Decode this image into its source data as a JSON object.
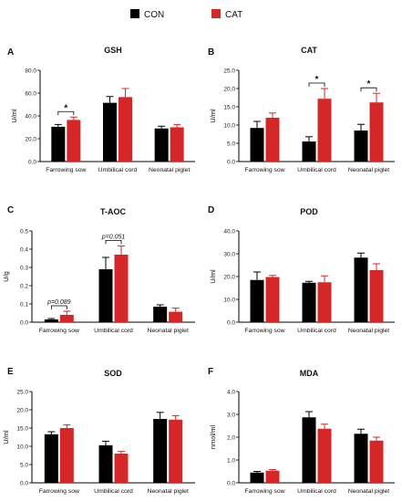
{
  "legend": [
    {
      "label": "CON",
      "color": "#000000"
    },
    {
      "label": "CAT",
      "color": "#d62728"
    }
  ],
  "chart_data": [
    {
      "type": "bar",
      "panel": "A",
      "title": "GSH",
      "ylabel": "U/ml",
      "categories": [
        "Farrowing sow",
        "Umbilical cord",
        "Neonatal piglet"
      ],
      "ylim": [
        0,
        80
      ],
      "yticks": [
        "0.0",
        "20.0",
        "40.0",
        "60.0",
        "80.0"
      ],
      "series": [
        {
          "name": "CON",
          "values": [
            30.5,
            51.5,
            29
          ],
          "errors": [
            2,
            5.5,
            2
          ]
        },
        {
          "name": "CAT",
          "values": [
            36.5,
            56.5,
            30
          ],
          "errors": [
            2.5,
            7.5,
            2.5
          ]
        }
      ],
      "annotations": [
        {
          "category": 0,
          "text": "*"
        }
      ]
    },
    {
      "type": "bar",
      "panel": "B",
      "title": "CAT",
      "ylabel": "U/ml",
      "categories": [
        "Farrowing sow",
        "Umbilical cord",
        "Neonatal piglet"
      ],
      "ylim": [
        0,
        25
      ],
      "yticks": [
        "0.0",
        "5.0",
        "10.0",
        "15.0",
        "20.0",
        "25.0"
      ],
      "series": [
        {
          "name": "CON",
          "values": [
            9.2,
            5.5,
            8.5
          ],
          "errors": [
            1.8,
            1.3,
            1.7
          ]
        },
        {
          "name": "CAT",
          "values": [
            12,
            17.2,
            16.2
          ],
          "errors": [
            1.3,
            2.8,
            2.5
          ]
        }
      ],
      "annotations": [
        {
          "category": 1,
          "text": "*"
        },
        {
          "category": 2,
          "text": "*"
        }
      ]
    },
    {
      "type": "bar",
      "panel": "C",
      "title": "T-AOC",
      "ylabel": "U/g",
      "categories": [
        "Farrowing sow",
        "Umbilical cord",
        "Neonatal piglet"
      ],
      "ylim": [
        0,
        0.5
      ],
      "yticks": [
        "0.0",
        "0.1",
        "0.2",
        "0.3",
        "0.4",
        "0.5"
      ],
      "series": [
        {
          "name": "CON",
          "values": [
            0.015,
            0.29,
            0.085
          ],
          "errors": [
            0.005,
            0.065,
            0.01
          ]
        },
        {
          "name": "CAT",
          "values": [
            0.04,
            0.37,
            0.057
          ],
          "errors": [
            0.02,
            0.048,
            0.02
          ]
        }
      ],
      "annotations": [
        {
          "category": 0,
          "text": "p=0.089"
        },
        {
          "category": 1,
          "text": "p=0.051"
        }
      ]
    },
    {
      "type": "bar",
      "panel": "D",
      "title": "POD",
      "ylabel": "U/ml",
      "categories": [
        "Farrowing sow",
        "Umbilical cord",
        "Neonatal piglet"
      ],
      "ylim": [
        0,
        40
      ],
      "yticks": [
        "0.0",
        "10.0",
        "20.0",
        "30.0",
        "40.0"
      ],
      "series": [
        {
          "name": "CON",
          "values": [
            18.5,
            17.3,
            28.3
          ],
          "errors": [
            3.5,
            0.6,
            2
          ]
        },
        {
          "name": "CAT",
          "values": [
            19.8,
            17.5,
            22.8
          ],
          "errors": [
            0.7,
            2.8,
            2.8
          ]
        }
      ],
      "annotations": []
    },
    {
      "type": "bar",
      "panel": "E",
      "title": "SOD",
      "ylabel": "U/ml",
      "categories": [
        "Farrowing sow",
        "Umbilical cord",
        "Neonatal piglet"
      ],
      "ylim": [
        0,
        25
      ],
      "yticks": [
        "0.0",
        "5.0",
        "10.0",
        "15.0",
        "20.0",
        "25.0"
      ],
      "series": [
        {
          "name": "CON",
          "values": [
            13.3,
            10.3,
            17.5
          ],
          "errors": [
            0.7,
            1.1,
            1.8
          ]
        },
        {
          "name": "CAT",
          "values": [
            15,
            8,
            17.3
          ],
          "errors": [
            0.9,
            0.6,
            1.1
          ]
        }
      ],
      "annotations": []
    },
    {
      "type": "bar",
      "panel": "F",
      "title": "MDA",
      "ylabel": "nmol/ml",
      "categories": [
        "Farrowing sow",
        "Umbilical cord",
        "Neonatal piglet"
      ],
      "ylim": [
        0,
        4
      ],
      "yticks": [
        "0.0",
        "1.0",
        "2.0",
        "3.0",
        "4.0"
      ],
      "series": [
        {
          "name": "CON",
          "values": [
            0.45,
            2.87,
            2.15
          ],
          "errors": [
            0.05,
            0.25,
            0.2
          ]
        },
        {
          "name": "CAT",
          "values": [
            0.53,
            2.37,
            1.85
          ],
          "errors": [
            0.05,
            0.2,
            0.15
          ]
        }
      ],
      "annotations": []
    }
  ]
}
